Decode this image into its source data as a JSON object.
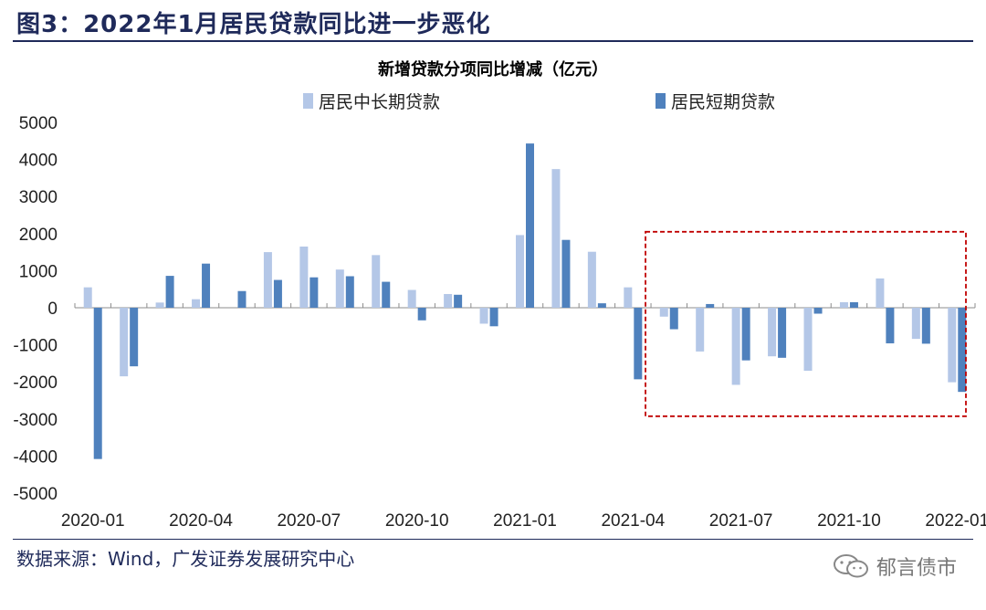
{
  "figure": {
    "title": "图3：2022年1月居民贷款同比进一步恶化",
    "source": "数据来源：Wind，广发证券发展研究中心",
    "brand": "郁言债市"
  },
  "colors": {
    "title": "#1f2a5a",
    "series_long": "#b4c7e7",
    "series_short": "#4f81bd",
    "highlight_box": "#c00000"
  },
  "chart_data": {
    "type": "bar",
    "title": "新增贷款分项同比增减（亿元）",
    "xlabel": "",
    "ylabel": "",
    "ylim": [
      -5000,
      5000
    ],
    "yticks": [
      5000,
      4000,
      3000,
      2000,
      1000,
      0,
      -1000,
      -2000,
      -3000,
      -4000,
      -5000
    ],
    "categories": [
      "2020-01",
      "2020-02",
      "2020-03",
      "2020-04",
      "2020-05",
      "2020-06",
      "2020-07",
      "2020-08",
      "2020-09",
      "2020-10",
      "2020-11",
      "2020-12",
      "2021-01",
      "2021-02",
      "2021-03",
      "2021-04",
      "2021-05",
      "2021-06",
      "2021-07",
      "2021-08",
      "2021-09",
      "2021-10",
      "2021-11",
      "2021-12",
      "2022-01"
    ],
    "xtick_labels": [
      "2020-01",
      "",
      "",
      "2020-04",
      "",
      "",
      "2020-07",
      "",
      "",
      "2020-10",
      "",
      "",
      "2021-01",
      "",
      "",
      "2021-04",
      "",
      "",
      "2021-07",
      "",
      "",
      "2021-10",
      "",
      "",
      "2022-01"
    ],
    "series": [
      {
        "name": "居民中长期贷款",
        "values": [
          550,
          -1850,
          140,
          230,
          0,
          1500,
          1650,
          1030,
          1420,
          480,
          370,
          -430,
          1960,
          3740,
          1510,
          550,
          -240,
          -1180,
          -2080,
          -1310,
          -1700,
          150,
          790,
          -840,
          -2010
        ]
      },
      {
        "name": "居民短期贷款",
        "values": [
          -4080,
          -1580,
          860,
          1190,
          450,
          750,
          820,
          850,
          700,
          -340,
          350,
          -500,
          4430,
          1830,
          120,
          -1930,
          -580,
          100,
          -1420,
          -1350,
          -160,
          150,
          -960,
          -970,
          -2270
        ]
      }
    ],
    "legend_position": "top",
    "grid": false,
    "annotation": "红色虚线框标示 2021-05 至 2022-01"
  }
}
